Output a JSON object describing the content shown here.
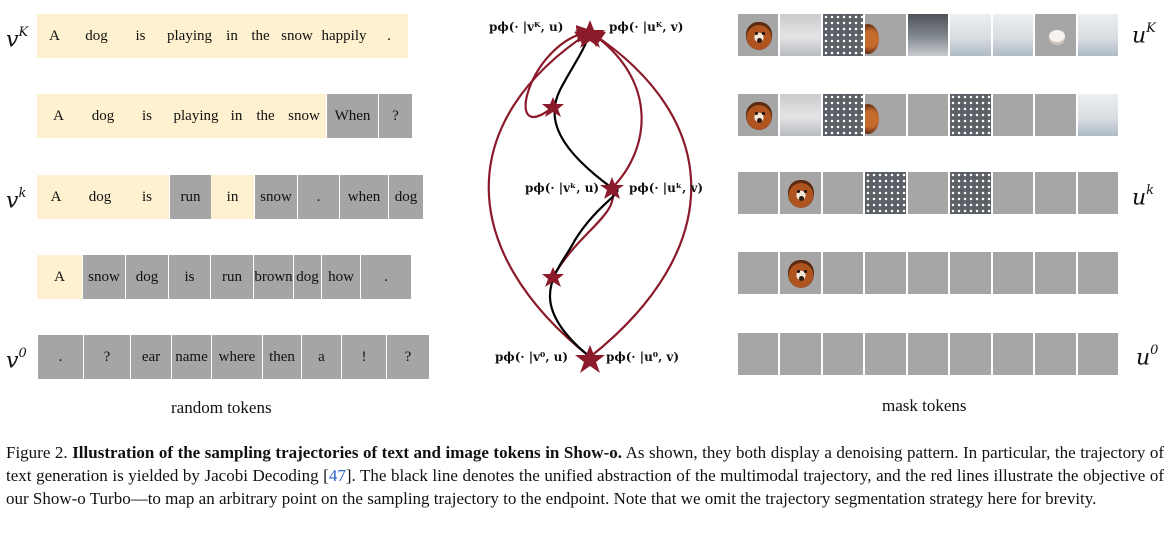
{
  "text_panel": {
    "label_top": "v",
    "label_top_sup": "K",
    "label_mid": "v",
    "label_mid_sup": "k",
    "label_bot": "v",
    "label_bot_sup": "0",
    "rows": [
      [
        [
          "A",
          "t",
          35
        ],
        [
          "dog",
          "t",
          49
        ],
        [
          "is",
          "t",
          39
        ],
        [
          "playing",
          "t",
          59
        ],
        [
          "in",
          "t",
          26
        ],
        [
          "the",
          "t",
          31
        ],
        [
          "snow",
          "t",
          42
        ],
        [
          "happily",
          "t",
          52
        ],
        [
          ".",
          "t",
          38
        ]
      ],
      [
        [
          "A",
          "t",
          43
        ],
        [
          "dog",
          "t",
          46
        ],
        [
          "is",
          "t",
          42
        ],
        [
          "playing",
          "t",
          56
        ],
        [
          "in",
          "t",
          25
        ],
        [
          "the",
          "t",
          33
        ],
        [
          "snow",
          "t",
          44
        ],
        [
          "When",
          "m",
          52
        ],
        [
          "?",
          "m",
          34
        ]
      ],
      [
        [
          "A",
          "t",
          38
        ],
        [
          "dog",
          "t",
          50
        ],
        [
          "is",
          "t",
          44
        ],
        [
          "run",
          "m",
          42
        ],
        [
          "in",
          "t",
          43
        ],
        [
          "snow",
          "m",
          43
        ],
        [
          ".",
          "m",
          42
        ],
        [
          "when",
          "m",
          49
        ],
        [
          "dog",
          "m",
          35
        ]
      ],
      [
        [
          "A",
          "t",
          45
        ],
        [
          "snow",
          "m",
          43
        ],
        [
          "dog",
          "m",
          43
        ],
        [
          "is",
          "m",
          42
        ],
        [
          "run",
          "m",
          43
        ],
        [
          "brown",
          "m",
          40
        ],
        [
          "dog",
          "m",
          28
        ],
        [
          "how",
          "m",
          39
        ],
        [
          ".",
          "m",
          51
        ]
      ],
      [
        [
          ".",
          "m",
          46
        ],
        [
          "?",
          "m",
          47
        ],
        [
          "ear",
          "m",
          41
        ],
        [
          "name",
          "m",
          40
        ],
        [
          "where",
          "m",
          51
        ],
        [
          "then",
          "m",
          39
        ],
        [
          "a",
          "m",
          40
        ],
        [
          "!",
          "m",
          45
        ],
        [
          "?",
          "m",
          43
        ]
      ]
    ],
    "caption": "random tokens"
  },
  "image_panel": {
    "label_top": "u",
    "label_top_sup": "K",
    "label_mid": "u",
    "label_mid_sup": "k",
    "label_bot": "u",
    "label_bot_sup": "0",
    "rows": [
      [
        "dog",
        "snow",
        "flake",
        "dogpart",
        "snow2",
        "snow3",
        "snow3",
        "paw",
        "snow3"
      ],
      [
        "dog",
        "snow",
        "flake",
        "dogpart",
        "m",
        "flake",
        "m",
        "m",
        "snow3"
      ],
      [
        "m",
        "dog",
        "m",
        "flake",
        "m",
        "flake",
        "m",
        "m",
        "m"
      ],
      [
        "m",
        "dog",
        "m",
        "m",
        "m",
        "m",
        "m",
        "m",
        "m"
      ],
      [
        "m",
        "m",
        "m",
        "m",
        "m",
        "m",
        "m",
        "m",
        "m"
      ]
    ],
    "caption": "mask tokens"
  },
  "trajectory": {
    "top_left": "pϕ(· |vᴷ, u)",
    "top_right": "pϕ(· |uᴷ, v)",
    "mid_left": "pϕ(· |vᵏ, u)",
    "mid_right": "pϕ(· |uᵏ, v)",
    "bot_left": "pϕ(· |v⁰, u)",
    "bot_right": "pϕ(· |u⁰, v)",
    "colors": {
      "black_line": "#000000",
      "red_line": "#8b1a2b",
      "star": "#8b1a2b"
    }
  },
  "caption": {
    "fig_label": "Figure 2. ",
    "bold": "Illustration of the sampling trajectories of text and image tokens in Show-o.",
    "part1": " As shown, they both display a denoising pattern. In particular, the trajectory of text generation is yielded by Jacobi Decoding [",
    "ref": "47",
    "part2": "]. The black line denotes the unified abstraction of the multimodal trajectory, and the red lines illustrate the objective of our Show-o Turbo—to map an arbitrary point on the sampling trajectory to the endpoint. Note that we omit the trajectory segmentation strategy here for brevity."
  }
}
